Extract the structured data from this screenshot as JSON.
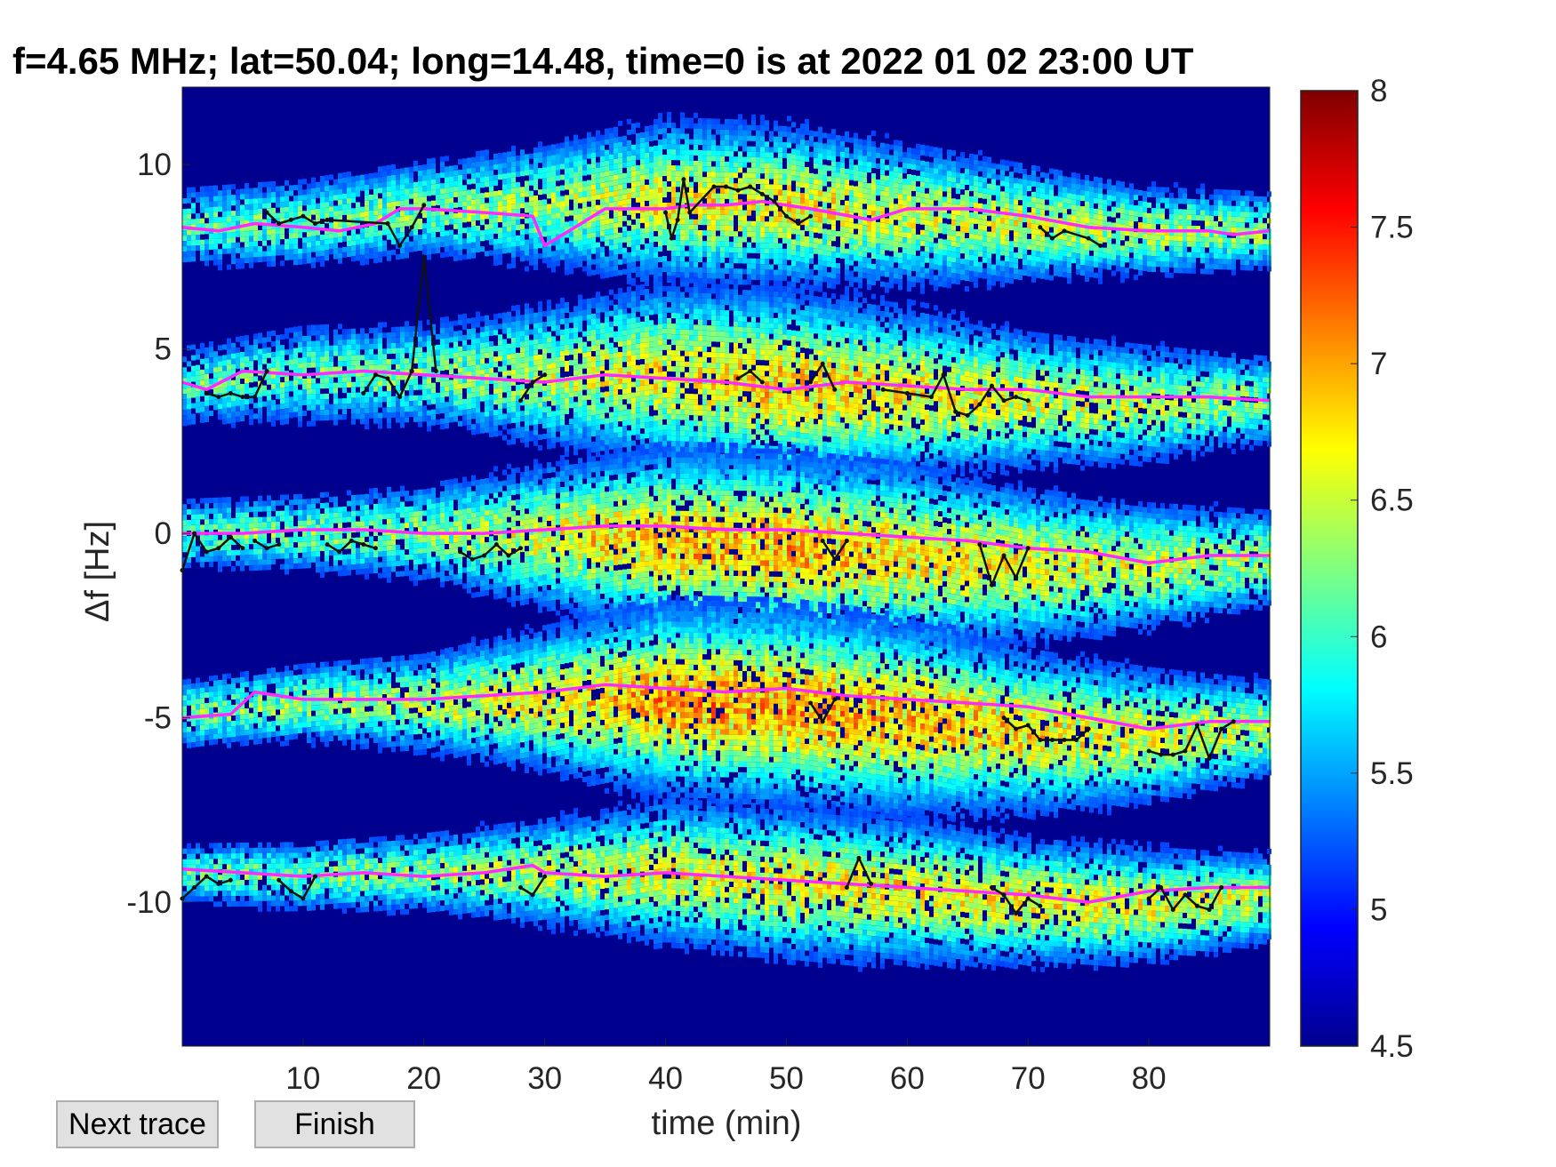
{
  "buttons": {
    "next_trace": "Next trace",
    "finish": "Finish"
  },
  "chart_data": {
    "type": "heatmap",
    "title": "f=4.65 MHz;  lat=50.04; long=14.48, time=0 is at 2022 01 02 23:00 UT",
    "xlabel": "time (min)",
    "ylabel": "Δf [Hz]",
    "xlim": [
      0,
      90
    ],
    "ylim": [
      -13.9,
      12.1
    ],
    "xticks": [
      10,
      20,
      30,
      40,
      50,
      60,
      70,
      80
    ],
    "yticks": [
      10,
      5,
      0,
      -5,
      -10
    ],
    "ytick_labels": [
      "10",
      "5",
      "0",
      "-5",
      "-10"
    ],
    "colorbar": {
      "colormap": "jet",
      "range": [
        4.5,
        8
      ],
      "ticks": [
        8,
        7.5,
        7,
        6.5,
        6,
        5.5,
        5,
        4.5
      ],
      "tick_labels": [
        "8",
        "7.5",
        "7",
        "6.5",
        "6",
        "5.5",
        "5",
        "4.5"
      ]
    },
    "background_color": "#00008f",
    "bands": [
      {
        "x": [
          0,
          10,
          20,
          30,
          40,
          50,
          60,
          70,
          80,
          90
        ],
        "center": [
          8.3,
          8.4,
          8.8,
          8.9,
          9.0,
          8.9,
          8.6,
          8.4,
          8.2,
          8.2
        ],
        "halfwidth": [
          0.9,
          1.0,
          1.1,
          1.4,
          1.8,
          1.8,
          1.6,
          1.3,
          1.0,
          0.9
        ],
        "peak": [
          5.9,
          6.0,
          6.1,
          6.2,
          6.6,
          6.6,
          6.4,
          6.4,
          6.3,
          6.1
        ]
      },
      {
        "x": [
          0,
          10,
          20,
          30,
          40,
          50,
          60,
          70,
          80,
          90
        ],
        "center": [
          4.0,
          4.3,
          4.3,
          4.3,
          4.3,
          4.0,
          3.8,
          3.6,
          3.5,
          3.6
        ],
        "halfwidth": [
          0.9,
          1.1,
          1.2,
          1.6,
          2.0,
          2.1,
          1.9,
          1.5,
          1.3,
          1.0
        ],
        "peak": [
          5.9,
          6.0,
          6.0,
          6.3,
          6.6,
          6.8,
          6.6,
          6.5,
          6.3,
          6.1
        ]
      },
      {
        "x": [
          0,
          10,
          20,
          30,
          40,
          50,
          60,
          70,
          80,
          90
        ],
        "center": [
          0.0,
          0.0,
          0.0,
          -0.1,
          -0.2,
          -0.4,
          -0.6,
          -0.9,
          -0.9,
          -0.7
        ],
        "halfwidth": [
          0.8,
          0.9,
          1.1,
          1.6,
          2.0,
          2.1,
          2.0,
          1.7,
          1.4,
          1.1
        ],
        "peak": [
          6.0,
          6.0,
          6.1,
          6.5,
          6.9,
          6.9,
          6.7,
          6.6,
          6.4,
          6.2
        ]
      },
      {
        "x": [
          0,
          10,
          20,
          30,
          40,
          50,
          60,
          70,
          80,
          90
        ],
        "center": [
          -4.9,
          -4.6,
          -4.6,
          -4.5,
          -4.5,
          -4.7,
          -5.0,
          -5.4,
          -5.5,
          -5.3
        ],
        "halfwidth": [
          0.8,
          0.9,
          1.1,
          1.6,
          2.1,
          2.2,
          2.1,
          1.8,
          1.5,
          1.1
        ],
        "peak": [
          6.0,
          6.1,
          6.3,
          6.6,
          7.0,
          7.0,
          6.9,
          6.7,
          6.5,
          6.3
        ]
      },
      {
        "x": [
          0,
          10,
          20,
          30,
          40,
          50,
          60,
          70,
          80,
          90
        ],
        "center": [
          -9.2,
          -9.3,
          -9.2,
          -9.2,
          -9.2,
          -9.5,
          -9.7,
          -10.0,
          -10.1,
          -9.9
        ],
        "halfwidth": [
          0.7,
          0.8,
          0.9,
          1.2,
          1.6,
          1.7,
          1.6,
          1.4,
          1.3,
          1.0
        ],
        "peak": [
          5.9,
          6.0,
          6.1,
          6.3,
          6.5,
          6.6,
          6.6,
          6.6,
          6.5,
          6.3
        ]
      }
    ],
    "series": [
      {
        "color": "#ff2aff",
        "traces": [
          {
            "x": [
              0,
              3,
              6,
              10,
              13,
              16,
              18,
              20,
              25,
              29,
              30,
              35,
              40,
              42,
              45,
              48,
              52,
              57,
              60,
              65,
              70,
              75,
              80,
              85,
              87,
              90
            ],
            "y": [
              8.3,
              8.2,
              8.4,
              8.3,
              8.2,
              8.4,
              8.8,
              8.8,
              8.7,
              8.6,
              7.8,
              8.8,
              8.8,
              8.9,
              8.9,
              9.0,
              8.8,
              8.5,
              8.8,
              8.8,
              8.6,
              8.3,
              8.2,
              8.2,
              8.1,
              8.2
            ]
          },
          {
            "x": [
              0,
              2,
              5,
              10,
              15,
              20,
              25,
              30,
              35,
              40,
              45,
              50,
              55,
              60,
              65,
              70,
              75,
              80,
              85,
              90
            ],
            "y": [
              4.1,
              3.9,
              4.4,
              4.3,
              4.4,
              4.3,
              4.2,
              4.1,
              4.3,
              4.2,
              4.1,
              3.9,
              4.1,
              4.0,
              3.9,
              3.9,
              3.7,
              3.7,
              3.7,
              3.6
            ]
          },
          {
            "x": [
              0,
              5,
              10,
              15,
              20,
              25,
              30,
              35,
              40,
              45,
              50,
              55,
              60,
              65,
              70,
              75,
              80,
              85,
              90
            ],
            "y": [
              0.0,
              0.0,
              0.1,
              0.1,
              0.0,
              0.0,
              0.1,
              0.2,
              0.2,
              0.1,
              0.1,
              0.0,
              -0.1,
              -0.2,
              -0.4,
              -0.5,
              -0.8,
              -0.6,
              -0.6
            ]
          },
          {
            "x": [
              0,
              4,
              6,
              10,
              15,
              20,
              25,
              30,
              35,
              40,
              45,
              50,
              55,
              60,
              65,
              70,
              75,
              80,
              85,
              90
            ],
            "y": [
              -5.0,
              -4.9,
              -4.3,
              -4.5,
              -4.5,
              -4.5,
              -4.4,
              -4.3,
              -4.1,
              -4.2,
              -4.3,
              -4.2,
              -4.4,
              -4.5,
              -4.6,
              -4.7,
              -5.0,
              -5.3,
              -5.1,
              -5.1
            ]
          },
          {
            "x": [
              0,
              5,
              10,
              15,
              20,
              25,
              29,
              30,
              35,
              40,
              45,
              50,
              55,
              60,
              65,
              70,
              75,
              80,
              85,
              90
            ],
            "y": [
              -9.1,
              -9.2,
              -9.3,
              -9.2,
              -9.3,
              -9.2,
              -9.0,
              -9.2,
              -9.3,
              -9.2,
              -9.3,
              -9.4,
              -9.5,
              -9.6,
              -9.7,
              -9.8,
              -10.0,
              -9.7,
              -9.6,
              -9.6
            ]
          }
        ]
      },
      {
        "color": "#111111",
        "traces": [
          {
            "x": [
              7,
              8,
              9,
              10,
              11,
              12,
              17,
              18,
              19,
              20
            ],
            "y": [
              8.7,
              8.4,
              8.5,
              8.6,
              8.4,
              8.5,
              8.4,
              7.8,
              8.3,
              8.9
            ]
          },
          {
            "x": [
              40,
              40.5,
              41,
              41.5,
              42,
              44,
              45,
              46,
              47,
              48,
              49,
              50,
              51,
              52
            ],
            "y": [
              8.7,
              8.0,
              8.5,
              9.6,
              8.7,
              9.4,
              9.4,
              9.3,
              9.4,
              9.2,
              9.0,
              8.6,
              8.4,
              8.6
            ]
          },
          {
            "x": [
              71,
              72,
              73,
              75,
              76
            ],
            "y": [
              8.3,
              8.0,
              8.2,
              8.0,
              7.8
            ]
          },
          {
            "x": [
              19,
              20,
              21
            ],
            "y": [
              4.4,
              7.5,
              4.4
            ]
          },
          {
            "x": [
              2,
              3,
              4,
              5,
              6,
              7
            ],
            "y": [
              3.8,
              3.7,
              3.8,
              3.7,
              3.7,
              4.4
            ]
          },
          {
            "x": [
              15,
              16,
              17,
              18,
              19
            ],
            "y": [
              3.8,
              4.3,
              4.2,
              3.7,
              4.4
            ]
          },
          {
            "x": [
              28,
              29,
              30
            ],
            "y": [
              3.6,
              4.1,
              4.3
            ]
          },
          {
            "x": [
              46,
              47,
              48
            ],
            "y": [
              4.2,
              4.4,
              4.1
            ]
          },
          {
            "x": [
              52,
              53,
              54
            ],
            "y": [
              4.1,
              4.6,
              3.9
            ]
          },
          {
            "x": [
              58,
              60,
              62,
              63,
              64,
              65,
              66,
              67,
              68,
              69,
              70
            ],
            "y": [
              3.9,
              3.8,
              3.7,
              4.3,
              3.3,
              3.2,
              3.5,
              4.0,
              3.6,
              3.7,
              3.6
            ]
          },
          {
            "x": [
              0,
              1,
              2,
              3,
              4,
              5
            ],
            "y": [
              -1.0,
              0.0,
              -0.5,
              -0.4,
              -0.1,
              -0.4
            ]
          },
          {
            "x": [
              6,
              7,
              8
            ],
            "y": [
              -0.2,
              -0.4,
              -0.3
            ]
          },
          {
            "x": [
              12,
              13,
              14,
              15,
              16
            ],
            "y": [
              -0.3,
              -0.5,
              -0.2,
              -0.3,
              -0.4
            ]
          },
          {
            "x": [
              23,
              24,
              25,
              26,
              27,
              28
            ],
            "y": [
              -0.5,
              -0.7,
              -0.6,
              -0.3,
              -0.6,
              -0.4
            ]
          },
          {
            "x": [
              53,
              54,
              55
            ],
            "y": [
              -0.2,
              -0.7,
              -0.2
            ]
          },
          {
            "x": [
              66,
              67,
              68,
              69,
              70
            ],
            "y": [
              -0.3,
              -1.4,
              -0.6,
              -1.2,
              -0.4
            ]
          },
          {
            "x": [
              52,
              53,
              54
            ],
            "y": [
              -4.6,
              -5.1,
              -4.5
            ]
          },
          {
            "x": [
              68,
              69,
              70,
              71,
              72,
              73,
              74,
              75
            ],
            "y": [
              -5.0,
              -5.3,
              -5.2,
              -5.6,
              -5.6,
              -5.6,
              -5.6,
              -5.3
            ]
          },
          {
            "x": [
              80,
              81,
              82,
              83,
              84,
              85,
              86,
              87
            ],
            "y": [
              -5.9,
              -6.0,
              -6.0,
              -5.9,
              -5.2,
              -6.1,
              -5.3,
              -5.1
            ]
          },
          {
            "x": [
              0,
              1,
              2,
              3,
              4
            ],
            "y": [
              -9.9,
              -9.6,
              -9.3,
              -9.5,
              -9.4
            ]
          },
          {
            "x": [
              8,
              9,
              10,
              11
            ],
            "y": [
              -9.4,
              -9.7,
              -9.9,
              -9.3
            ]
          },
          {
            "x": [
              28,
              29,
              30
            ],
            "y": [
              -9.6,
              -9.8,
              -9.3
            ]
          },
          {
            "x": [
              55,
              56,
              57
            ],
            "y": [
              -9.6,
              -8.8,
              -9.5
            ]
          },
          {
            "x": [
              67,
              68,
              69,
              70,
              71
            ],
            "y": [
              -9.6,
              -9.8,
              -10.3,
              -9.9,
              -10.1
            ]
          },
          {
            "x": [
              80,
              81,
              82,
              83,
              84,
              85,
              86
            ],
            "y": [
              -9.9,
              -9.6,
              -10.2,
              -9.8,
              -10.1,
              -10.2,
              -9.6
            ]
          }
        ]
      }
    ]
  }
}
